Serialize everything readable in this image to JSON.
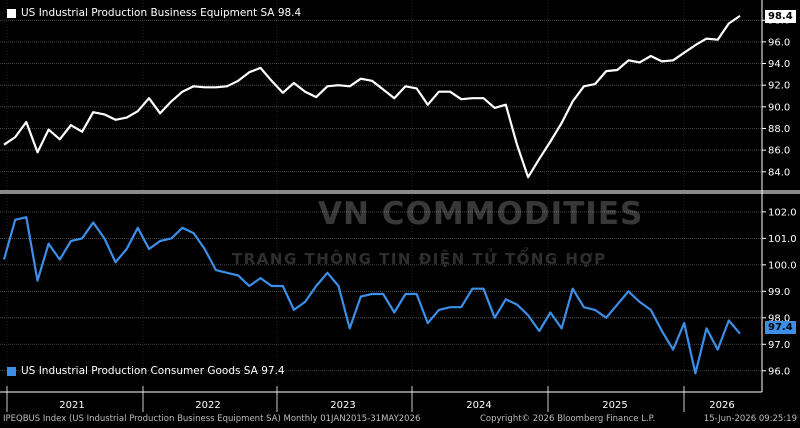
{
  "chart_data": [
    {
      "type": "line",
      "title": "US Industrial Production Business Equipment SA 98.4",
      "last_value": "98.4",
      "color": "#ffffff",
      "ylim": [
        82.5,
        99.5
      ],
      "yticks": [
        "84.0",
        "86.0",
        "88.0",
        "90.0",
        "92.0",
        "94.0",
        "96.0",
        "98.0"
      ],
      "series": [
        {
          "name": "US Industrial Production Business Equipment SA",
          "values": [
            86.5,
            87.2,
            88.6,
            85.8,
            87.9,
            87.0,
            88.3,
            87.7,
            89.5,
            89.3,
            88.8,
            89.0,
            89.6,
            90.8,
            89.4,
            90.5,
            91.4,
            91.9,
            91.8,
            91.8,
            91.9,
            92.4,
            93.2,
            93.6,
            92.4,
            91.3,
            92.2,
            91.4,
            90.9,
            91.9,
            92.0,
            91.9,
            92.6,
            92.4,
            91.6,
            90.8,
            91.9,
            91.7,
            90.2,
            91.4,
            91.4,
            90.7,
            90.8,
            90.8,
            89.9,
            90.2,
            86.5,
            83.5,
            85.2,
            86.8,
            88.5,
            90.5,
            91.9,
            92.1,
            93.3,
            93.4,
            94.3,
            94.1,
            94.7,
            94.2,
            94.3,
            95.0,
            95.7,
            96.3,
            96.2,
            97.7,
            98.4
          ]
        }
      ]
    },
    {
      "type": "line",
      "title": "US Industrial Production Consumer Goods SA 97.4",
      "last_value": "97.4",
      "color": "#3b8fe8",
      "ylim": [
        95.5,
        102.6
      ],
      "yticks": [
        "96.0",
        "97.0",
        "98.0",
        "99.0",
        "100.0",
        "101.0",
        "102.0"
      ],
      "series": [
        {
          "name": "US Industrial Production Consumer Goods SA",
          "values": [
            100.2,
            101.7,
            101.8,
            99.4,
            100.8,
            100.2,
            100.9,
            101.0,
            101.6,
            101.0,
            100.1,
            100.6,
            101.4,
            100.6,
            100.9,
            101.0,
            101.4,
            101.2,
            100.6,
            99.8,
            99.7,
            99.6,
            99.2,
            99.5,
            99.2,
            99.2,
            98.3,
            98.6,
            99.2,
            99.7,
            99.2,
            97.6,
            98.8,
            98.9,
            98.9,
            98.2,
            98.9,
            98.9,
            97.8,
            98.3,
            98.4,
            98.4,
            99.1,
            99.1,
            98.0,
            98.7,
            98.5,
            98.1,
            97.5,
            98.2,
            97.6,
            99.1,
            98.4,
            98.3,
            98.0,
            98.5,
            99.0,
            98.6,
            98.3,
            97.5,
            96.8,
            97.8,
            95.9,
            97.6,
            96.8,
            97.9,
            97.4
          ]
        }
      ]
    }
  ],
  "x_axis": {
    "labels": [
      "2021",
      "2022",
      "2023",
      "2024",
      "2025",
      "2026"
    ]
  },
  "watermark": {
    "title": "VN COMMODITIES",
    "subtitle": "TRANG THÔNG TIN ĐIỆN TỬ TỔNG HỢP"
  },
  "footer": {
    "left": "IPEQBUS Index (US Industrial Production Business Equipment SA) Monthly 01JAN2015-31MAY2026",
    "mid": "Copyright© 2026 Bloomberg Finance L.P.",
    "right": "15-Jun-2026 09:25:19"
  }
}
